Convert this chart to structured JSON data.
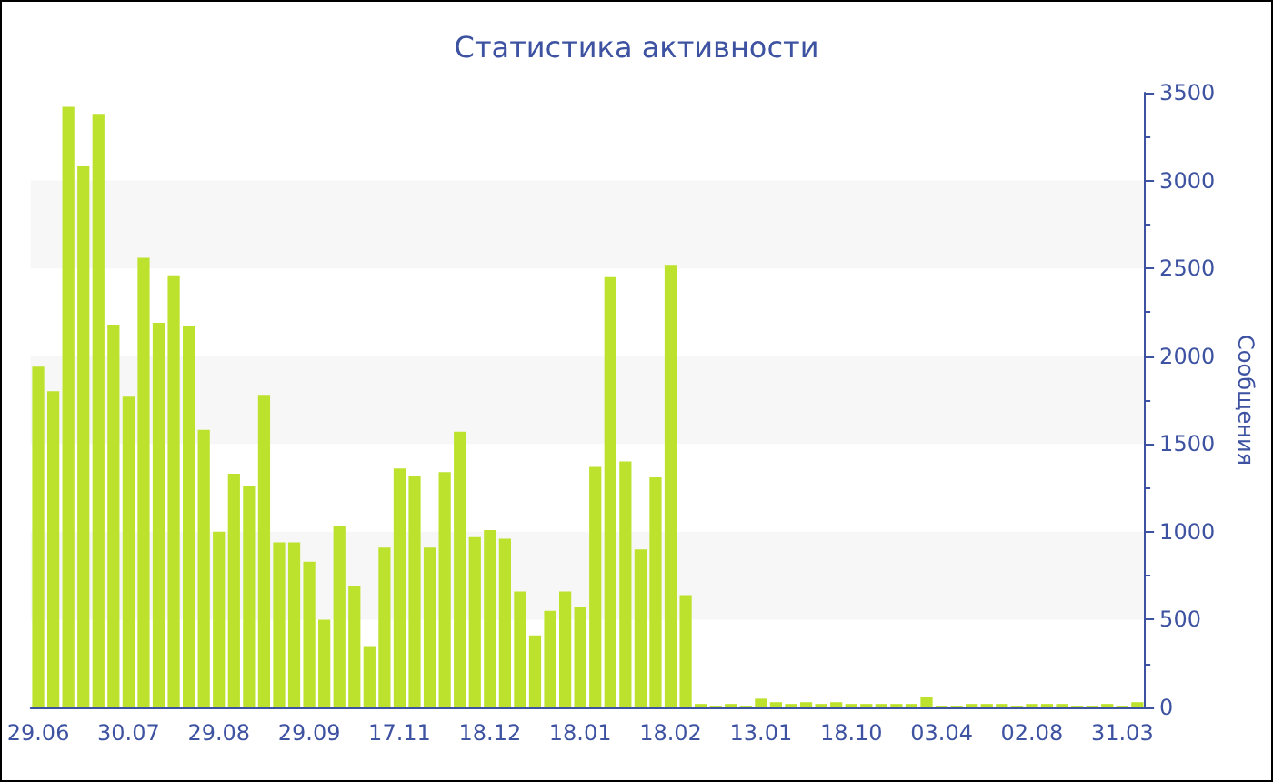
{
  "chart_data": {
    "type": "bar",
    "title": "Статистика активности",
    "ylabel": "Сообщения",
    "categories": [
      "29.06",
      null,
      null,
      null,
      null,
      null,
      "30.07",
      null,
      null,
      null,
      null,
      null,
      "29.08",
      null,
      null,
      null,
      null,
      null,
      "29.09",
      null,
      null,
      null,
      null,
      null,
      "17.11",
      null,
      null,
      null,
      null,
      null,
      "18.12",
      null,
      null,
      null,
      null,
      null,
      "18.01",
      null,
      null,
      null,
      null,
      null,
      "18.02",
      null,
      null,
      null,
      null,
      null,
      "13.01",
      null,
      null,
      null,
      null,
      null,
      "18.10",
      null,
      null,
      null,
      null,
      null,
      "03.04",
      null,
      null,
      null,
      null,
      null,
      "02.08",
      null,
      null,
      null,
      null,
      null,
      "31.03",
      null
    ],
    "values": [
      1940,
      1800,
      3420,
      3080,
      3380,
      2180,
      1770,
      2560,
      2190,
      2460,
      2170,
      1580,
      1000,
      1330,
      1260,
      1780,
      940,
      940,
      830,
      500,
      1030,
      690,
      350,
      910,
      1360,
      1320,
      910,
      1340,
      1570,
      970,
      1010,
      960,
      660,
      410,
      550,
      660,
      570,
      1370,
      2450,
      1400,
      900,
      1310,
      2520,
      640,
      20,
      10,
      20,
      10,
      50,
      30,
      20,
      30,
      20,
      30,
      20,
      20,
      20,
      20,
      20,
      60,
      10,
      10,
      20,
      20,
      20,
      10,
      20,
      20,
      20,
      10,
      10,
      20,
      10,
      30
    ],
    "color": "#bde22e",
    "ylim": [
      0,
      3500
    ],
    "yticks": [
      0,
      500,
      1000,
      1500,
      2000,
      2500,
      3000,
      3500
    ],
    "bands": [
      {
        "axis": "y",
        "from": 500,
        "to": 1000,
        "color": "#f7f7f7"
      },
      {
        "axis": "y",
        "from": 1500,
        "to": 2000,
        "color": "#f7f7f7"
      },
      {
        "axis": "y",
        "from": 2500,
        "to": 3000,
        "color": "#f7f7f7"
      }
    ]
  }
}
